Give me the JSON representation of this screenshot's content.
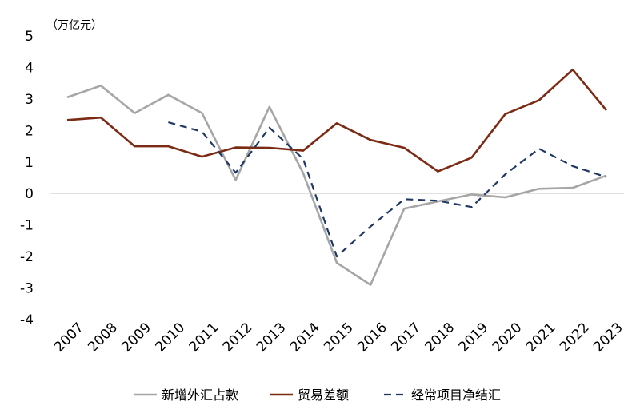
{
  "chart_data": {
    "type": "line",
    "unit_label": "（万亿元）",
    "categories": [
      "2007",
      "2008",
      "2009",
      "2010",
      "2011",
      "2012",
      "2013",
      "2014",
      "2015",
      "2016",
      "2017",
      "2018",
      "2019",
      "2020",
      "2021",
      "2022",
      "2023"
    ],
    "ylim": [
      -4,
      5
    ],
    "yticks": [
      "5",
      "4",
      "3",
      "2",
      "1",
      "0",
      "-1",
      "-2",
      "-3",
      "-4"
    ],
    "ytick_values": [
      5,
      4,
      3,
      2,
      1,
      0,
      -1,
      -2,
      -3,
      -4
    ],
    "grid": false,
    "legend_position": "bottom",
    "series": [
      {
        "name": "新增外汇占款",
        "color": "#a6a6a6",
        "style": "solid",
        "values": [
          3.05,
          3.42,
          2.55,
          3.13,
          2.55,
          0.43,
          2.75,
          0.65,
          -2.2,
          -2.9,
          -0.48,
          -0.25,
          -0.03,
          -0.12,
          0.15,
          0.18,
          0.57
        ]
      },
      {
        "name": "贸易差额",
        "color": "#7b2a14",
        "style": "solid",
        "values": [
          2.33,
          2.41,
          1.5,
          1.5,
          1.17,
          1.46,
          1.45,
          1.36,
          2.23,
          1.7,
          1.45,
          0.7,
          1.14,
          2.52,
          2.96,
          3.93,
          2.64
        ]
      },
      {
        "name": "经常项目净结汇",
        "color": "#1f3864",
        "style": "dashed",
        "values": [
          null,
          null,
          null,
          2.26,
          1.96,
          0.66,
          2.09,
          1.1,
          -2.0,
          -1.05,
          -0.18,
          -0.23,
          -0.43,
          0.61,
          1.42,
          0.87,
          0.52
        ]
      }
    ]
  }
}
